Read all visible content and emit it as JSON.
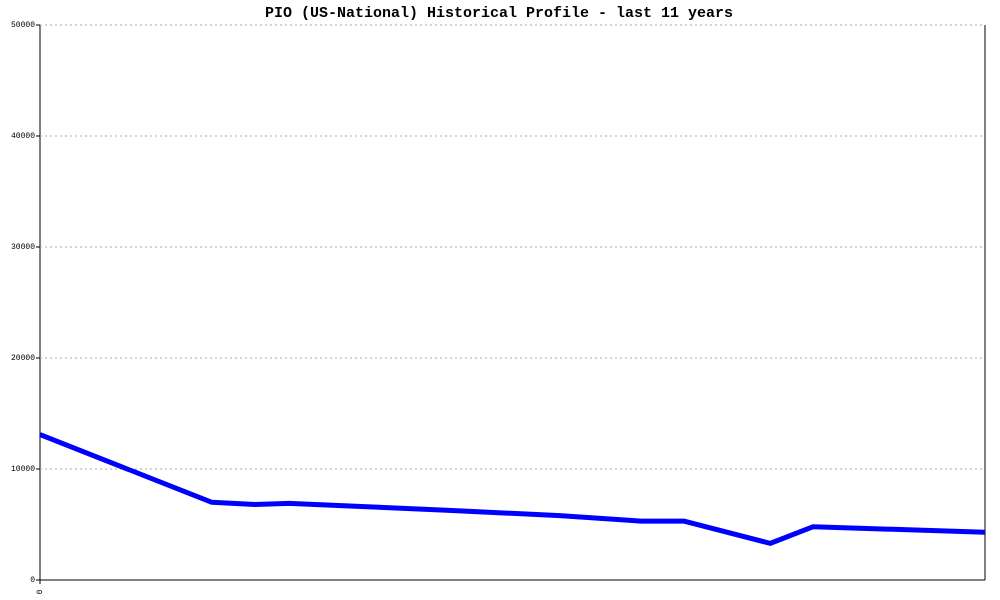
{
  "chart_data": {
    "type": "line",
    "title": "PIO (US-National) Historical Profile - last 11 years",
    "x": [
      0,
      2.0,
      2.5,
      2.9,
      4.7,
      6.05,
      7.0,
      7.5,
      8.5,
      9.0,
      11
    ],
    "series": [
      {
        "color": "#0000ff",
        "values": [
          13100,
          7000,
          6800,
          6900,
          6300,
          5800,
          5300,
          5300,
          3300,
          4800,
          4300
        ]
      }
    ],
    "xlim": [
      0,
      11
    ],
    "xticks": [
      0
    ],
    "ylim": [
      0,
      50000
    ],
    "yticks": [
      0,
      10000,
      20000,
      30000,
      40000,
      50000
    ],
    "grid": true
  }
}
